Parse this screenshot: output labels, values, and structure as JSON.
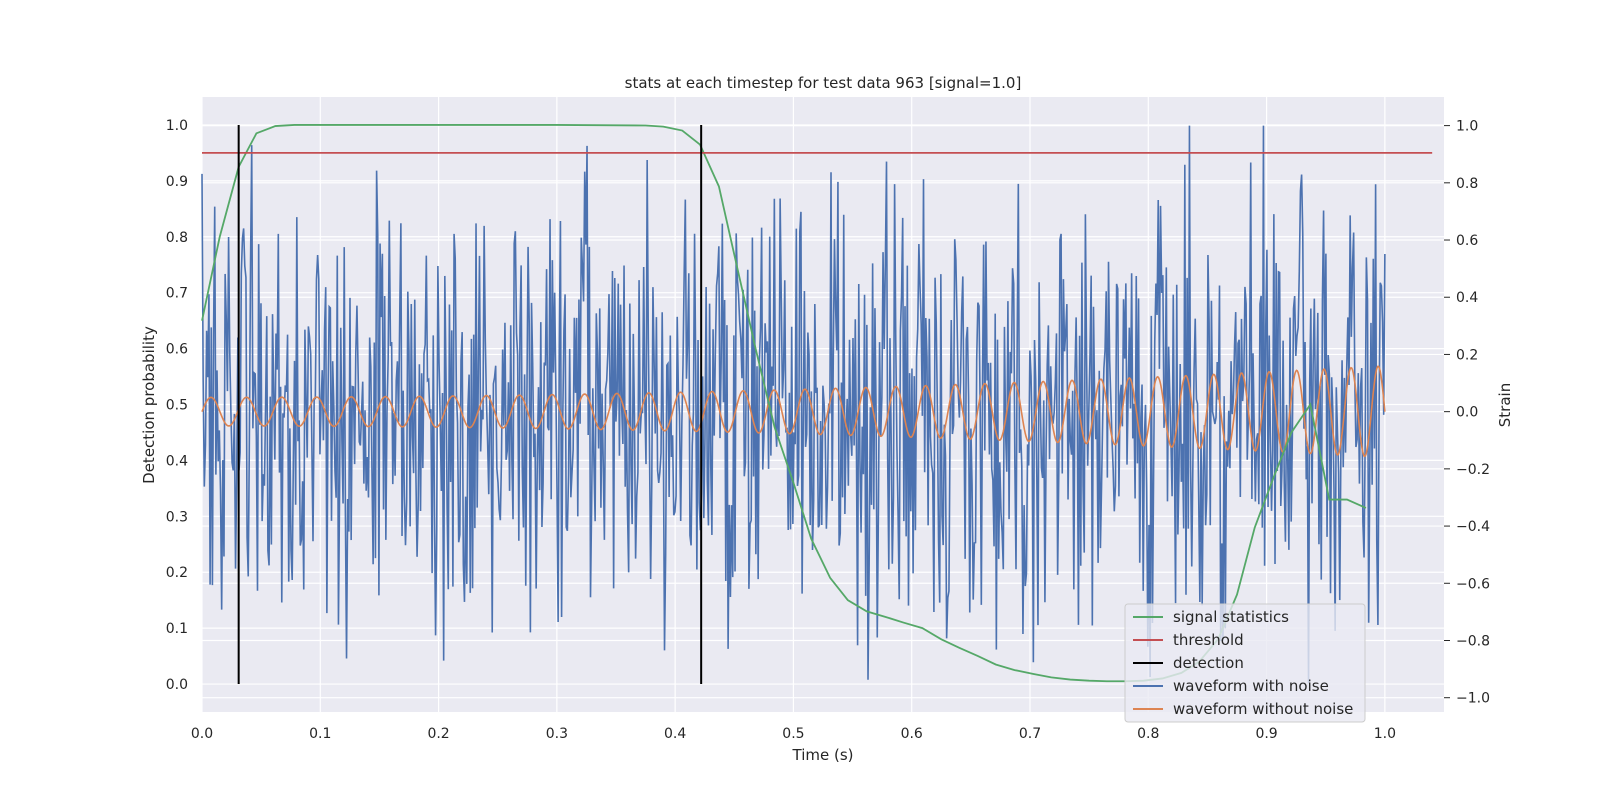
{
  "chart_data": {
    "type": "line",
    "title": "stats at each timestep for test data 963 [signal=1.0]",
    "xlabel": "Time (s)",
    "ylabel_left": "Detection probability",
    "ylabel_right": "Strain",
    "xlim": [
      0.0,
      1.05
    ],
    "ylim_left": [
      -0.05,
      1.05
    ],
    "ylim_right": [
      -1.05,
      1.1
    ],
    "x_ticks": [
      "0.0",
      "0.1",
      "0.2",
      "0.3",
      "0.4",
      "0.5",
      "0.6",
      "0.7",
      "0.8",
      "0.9",
      "1.0"
    ],
    "y_left_ticks": [
      "0.0",
      "0.1",
      "0.2",
      "0.3",
      "0.4",
      "0.5",
      "0.6",
      "0.7",
      "0.8",
      "0.9",
      "1.0"
    ],
    "y_right_ticks": [
      "−1.0",
      "−0.8",
      "−0.6",
      "−0.4",
      "−0.2",
      "0.0",
      "0.2",
      "0.4",
      "0.6",
      "0.8",
      "1.0"
    ],
    "grid": true,
    "legend_position": "bottom-right",
    "colors": {
      "background": "#eaeaf2",
      "grid": "#ffffff",
      "signal_statistics": "#55a868",
      "threshold": "#c44e52",
      "detection": "#000000",
      "waveform_with_noise": "#4c72b0",
      "waveform_without_noise": "#dd8452"
    },
    "legend": [
      "signal statistics",
      "threshold",
      "detection",
      "waveform with noise",
      "waveform without noise"
    ],
    "series": [
      {
        "key": "signal_statistics",
        "axis": "left",
        "x": [
          0.0,
          0.015,
          0.031,
          0.046,
          0.062,
          0.078,
          0.1,
          0.2,
          0.3,
          0.375,
          0.39,
          0.406,
          0.421,
          0.437,
          0.453,
          0.468,
          0.484,
          0.5,
          0.515,
          0.531,
          0.546,
          0.562,
          0.578,
          0.593,
          0.609,
          0.625,
          0.64,
          0.656,
          0.671,
          0.687,
          0.703,
          0.718,
          0.734,
          0.75,
          0.765,
          0.781,
          0.796,
          0.812,
          0.828,
          0.843,
          0.859,
          0.875,
          0.89,
          0.906,
          0.921,
          0.937,
          0.953,
          0.968,
          0.984
        ],
        "y": [
          0.65,
          0.8,
          0.925,
          0.985,
          0.998,
          1.0,
          1.0,
          1.0,
          1.0,
          0.999,
          0.997,
          0.99,
          0.965,
          0.89,
          0.74,
          0.6,
          0.46,
          0.36,
          0.26,
          0.19,
          0.15,
          0.13,
          0.12,
          0.11,
          0.1,
          0.08,
          0.065,
          0.05,
          0.035,
          0.025,
          0.018,
          0.012,
          0.008,
          0.006,
          0.005,
          0.005,
          0.006,
          0.01,
          0.02,
          0.04,
          0.08,
          0.16,
          0.28,
          0.37,
          0.45,
          0.5,
          0.33,
          0.33,
          0.315
        ]
      },
      {
        "key": "threshold",
        "axis": "left",
        "x": [
          0.0,
          1.04
        ],
        "y": [
          0.95,
          0.95
        ]
      }
    ],
    "detections": [
      0.031,
      0.422
    ],
    "waveform_without_noise": {
      "axis": "right",
      "t_range": [
        0.0,
        1.0
      ],
      "f_start_hz": 33,
      "f_end_hz": 44,
      "amplitude_start": 0.05,
      "amplitude_end": 0.16
    },
    "waveform_with_noise": {
      "axis": "right",
      "t_range": [
        0.0,
        1.0
      ],
      "n_points": 1024,
      "noise_amplitude": 0.3,
      "y_range": [
        -0.95,
        1.0
      ]
    }
  }
}
